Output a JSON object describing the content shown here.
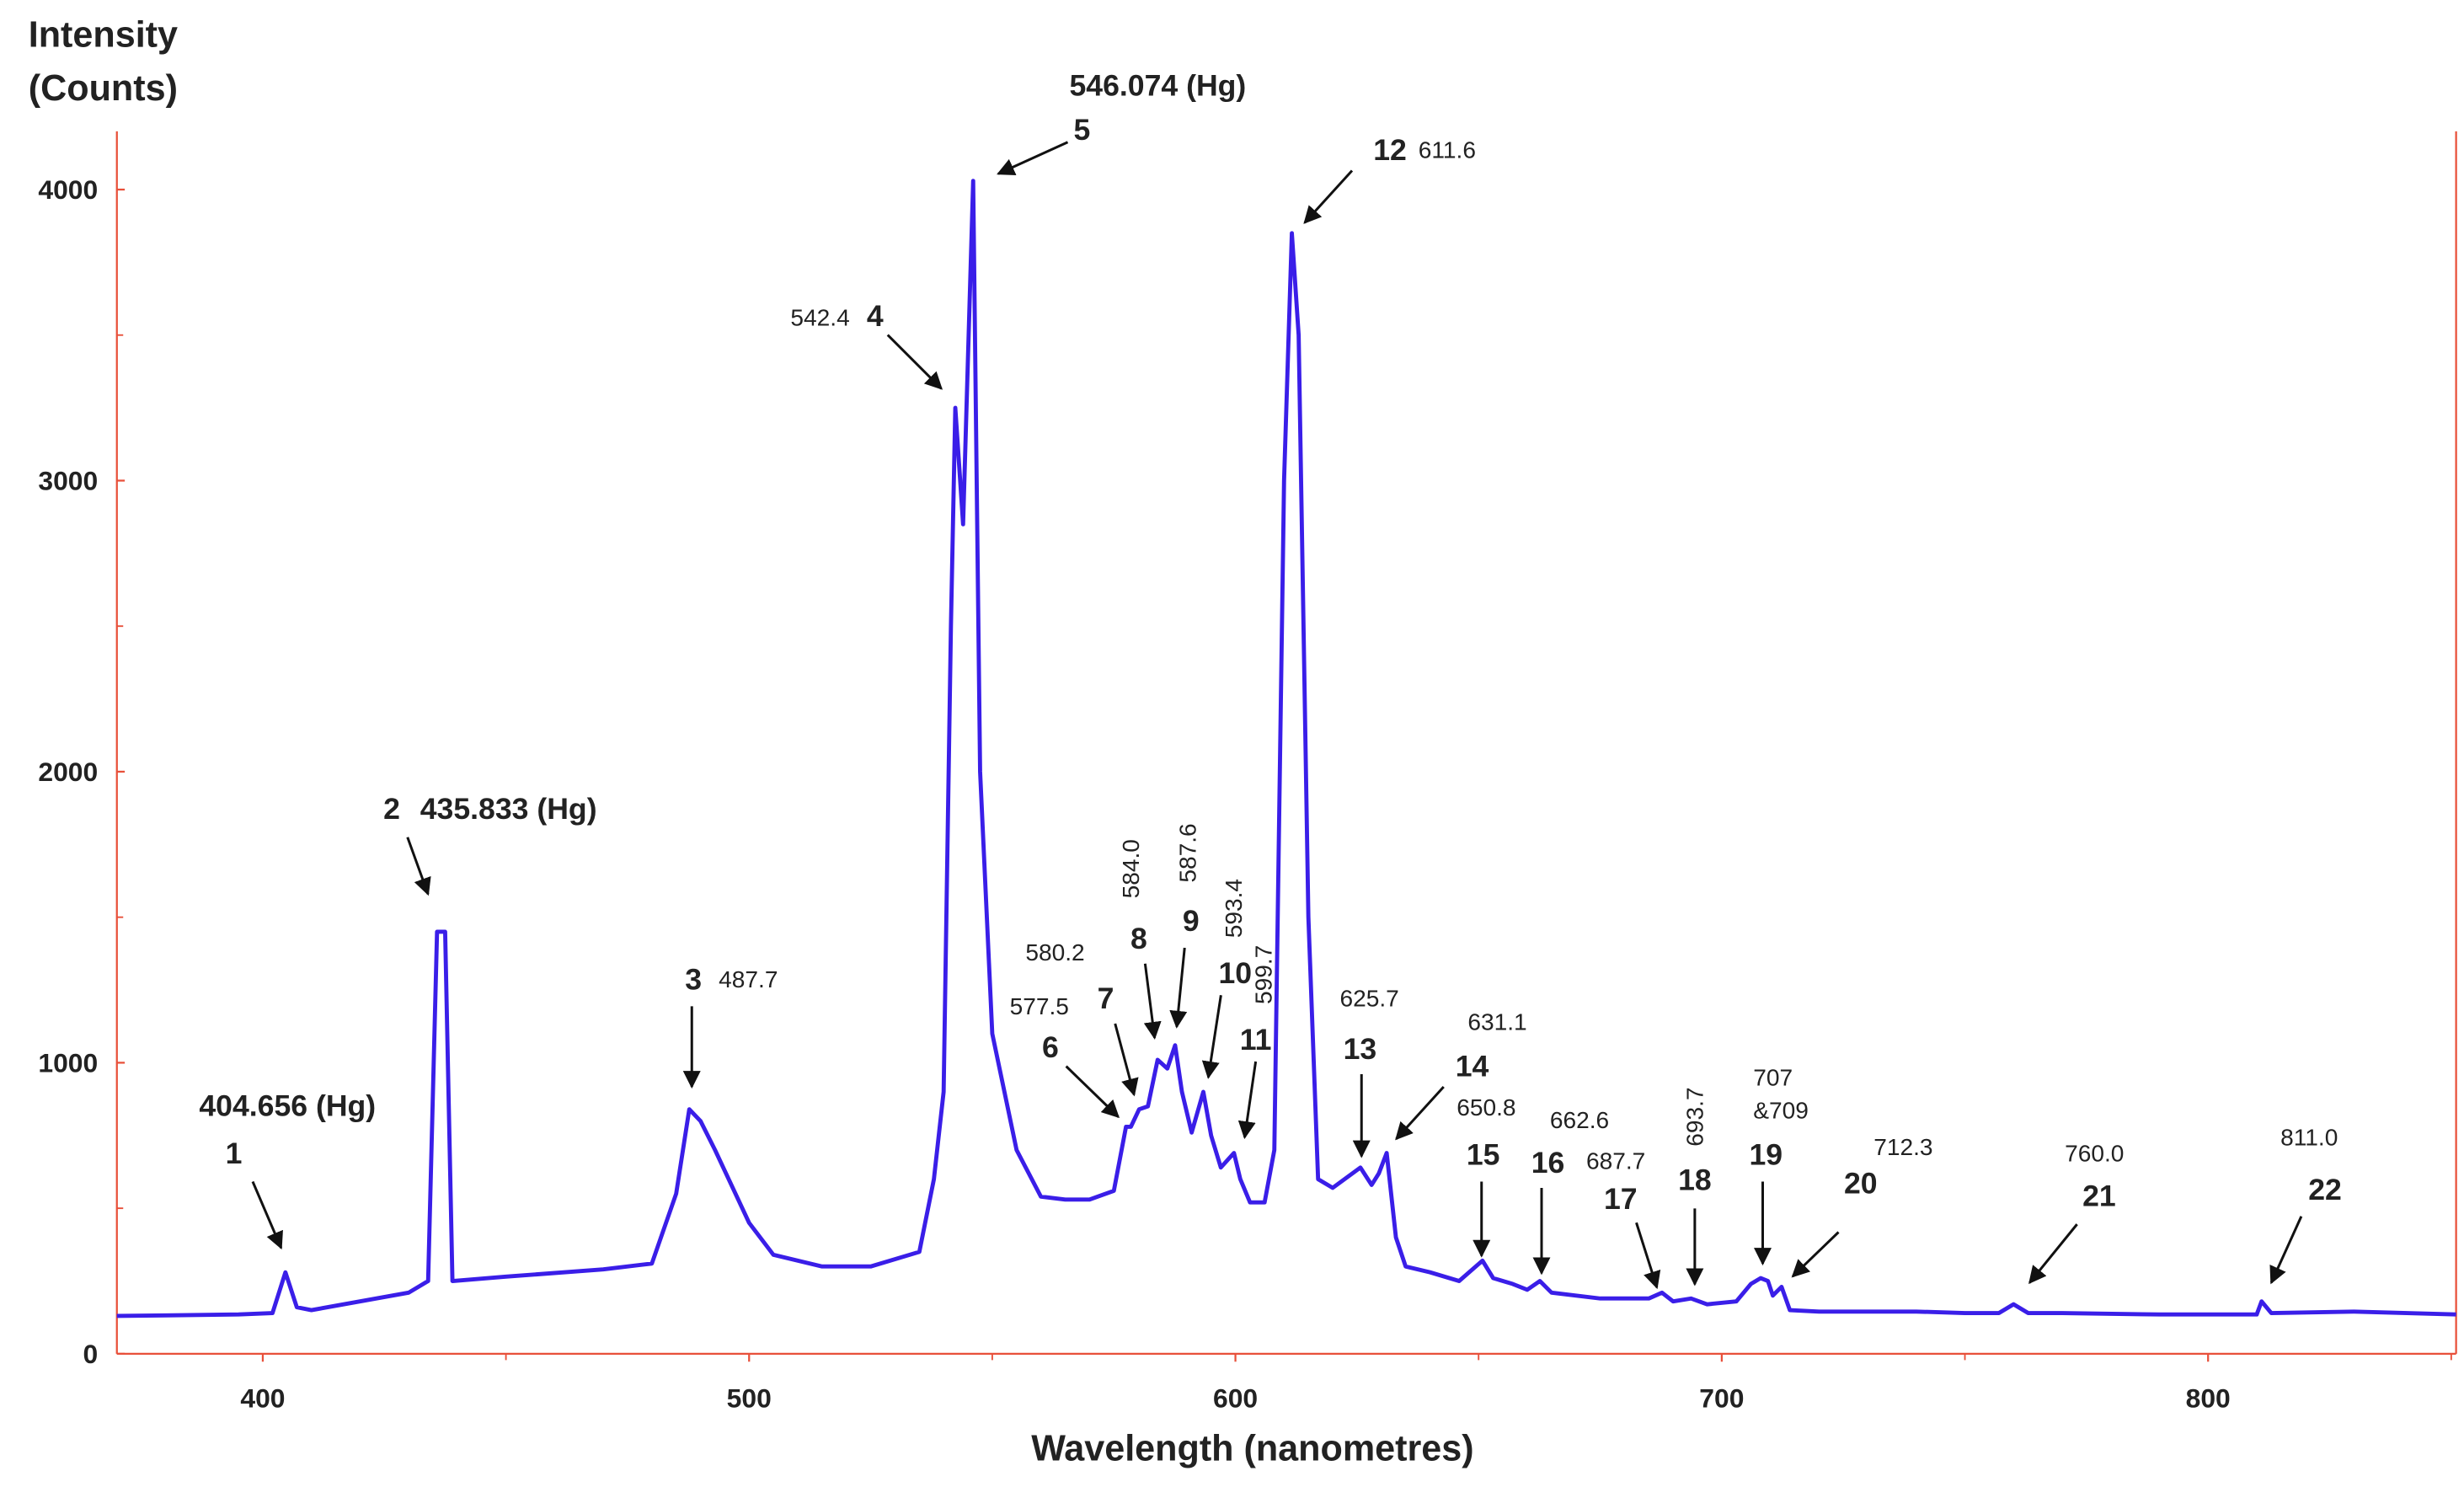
{
  "chart_data": {
    "type": "line",
    "ylabel": [
      "Intensity",
      "(Counts)"
    ],
    "xlabel": "Wavelength (nanometres)",
    "color": "#3a1ee8",
    "axis_color": "#e8503a",
    "xlim": [
      370,
      851
    ],
    "ylim": [
      0,
      4200
    ],
    "xticks": [
      400,
      500,
      600,
      700,
      800
    ],
    "yticks": [
      0,
      1000,
      2000,
      3000,
      4000
    ],
    "xminorticks": [
      450,
      550,
      650,
      750,
      850
    ],
    "yminorticks": [
      500,
      1500,
      2500,
      3500
    ],
    "x": [
      370,
      380,
      395,
      402,
      404.656,
      407,
      410,
      430,
      434,
      435.833,
      437.5,
      439,
      450,
      470,
      480,
      485,
      487.7,
      490,
      493,
      500,
      505,
      515,
      525,
      535,
      538,
      540,
      541.5,
      542.4,
      544,
      546.074,
      547.5,
      550,
      555,
      560,
      565,
      570,
      575,
      577.5,
      578.5,
      580.2,
      582,
      584.0,
      586,
      587.6,
      589,
      591,
      593.4,
      595,
      597,
      599.7,
      601,
      603,
      606,
      608,
      610,
      611.6,
      613,
      615,
      617,
      620,
      625.7,
      628,
      629.5,
      631.1,
      633,
      635,
      640,
      646,
      650.8,
      653,
      657,
      660,
      662.6,
      665,
      675,
      685,
      687.7,
      690,
      693.7,
      697,
      703,
      706,
      708,
      709.5,
      710.5,
      712.3,
      714,
      720,
      740,
      750,
      757,
      760,
      763,
      770,
      790,
      810,
      811,
      813,
      830,
      851
    ],
    "values": [
      130,
      132,
      135,
      140,
      280,
      160,
      150,
      210,
      250,
      1450,
      1450,
      250,
      265,
      290,
      310,
      550,
      840,
      800,
      700,
      450,
      340,
      300,
      300,
      350,
      600,
      900,
      2500,
      3250,
      2850,
      4030,
      2000,
      1100,
      700,
      540,
      530,
      530,
      560,
      780,
      780,
      840,
      850,
      1010,
      980,
      1060,
      900,
      760,
      900,
      750,
      640,
      690,
      600,
      520,
      520,
      700,
      3000,
      3850,
      3500,
      1500,
      600,
      570,
      640,
      580,
      620,
      690,
      400,
      300,
      280,
      250,
      320,
      260,
      240,
      220,
      250,
      210,
      190,
      190,
      210,
      180,
      190,
      170,
      180,
      240,
      260,
      250,
      200,
      230,
      150,
      145,
      145,
      140,
      140,
      170,
      140,
      140,
      135,
      135,
      180,
      140,
      145,
      135
    ],
    "annotations": [
      {
        "number": "1",
        "label": "404.656 (Hg)"
      },
      {
        "number": "2",
        "label": "435.833 (Hg)"
      },
      {
        "number": "3",
        "label": "487.7"
      },
      {
        "number": "4",
        "label": "542.4"
      },
      {
        "number": "5",
        "label": "546.074 (Hg)"
      },
      {
        "number": "6",
        "label": "577.5"
      },
      {
        "number": "7",
        "label": "580.2"
      },
      {
        "number": "8",
        "label": "584.0"
      },
      {
        "number": "9",
        "label": "587.6"
      },
      {
        "number": "10",
        "label": "593.4"
      },
      {
        "number": "11",
        "label": "599.7"
      },
      {
        "number": "12",
        "label": "611.6"
      },
      {
        "number": "13",
        "label": "625.7"
      },
      {
        "number": "14",
        "label": "631.1"
      },
      {
        "number": "15",
        "label": "650.8"
      },
      {
        "number": "16",
        "label": "662.6"
      },
      {
        "number": "17",
        "label": "687.7"
      },
      {
        "number": "18",
        "label": "693.7"
      },
      {
        "number": "19",
        "label": [
          "707",
          "&709"
        ]
      },
      {
        "number": "20",
        "label": "712.3"
      },
      {
        "number": "21",
        "label": "760.0"
      },
      {
        "number": "22",
        "label": "811.0"
      }
    ]
  }
}
